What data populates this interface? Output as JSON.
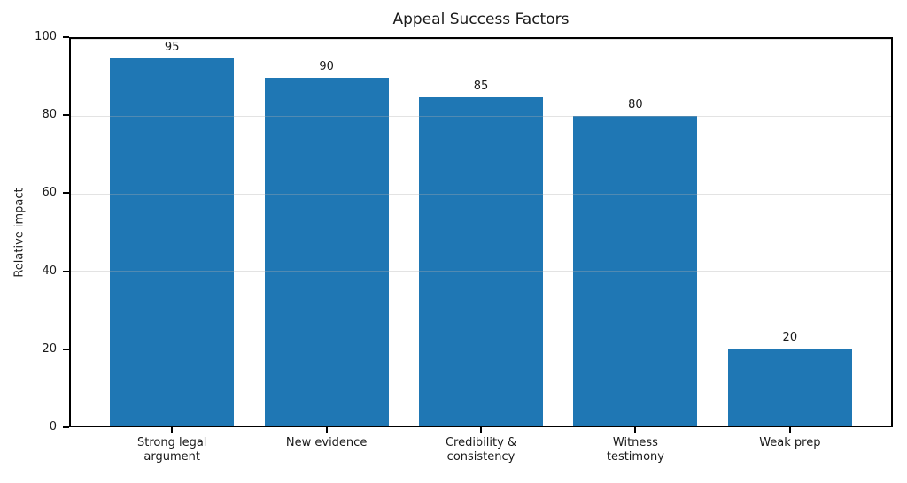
{
  "chart_data": {
    "type": "bar",
    "title": "Appeal Success Factors",
    "xlabel": "",
    "ylabel": "Relative impact",
    "categories": [
      "Strong legal\nargument",
      "New evidence",
      "Credibility &\nconsistency",
      "Witness\ntestimony",
      "Weak prep"
    ],
    "values": [
      95,
      90,
      85,
      80,
      20
    ],
    "bar_value_labels": [
      "95",
      "90",
      "85",
      "80",
      "20"
    ],
    "yticks": [
      0,
      20,
      40,
      60,
      80,
      100
    ],
    "ylim": [
      0,
      100
    ],
    "grid": "horizontal",
    "grid_above_bars": true,
    "legend_position": "none",
    "colors": {
      "bar": "#1f77b4",
      "grid": "rgba(176,176,176,0.35)",
      "axis": "#000000",
      "text": "#1a1a1a",
      "background": "#ffffff"
    }
  }
}
